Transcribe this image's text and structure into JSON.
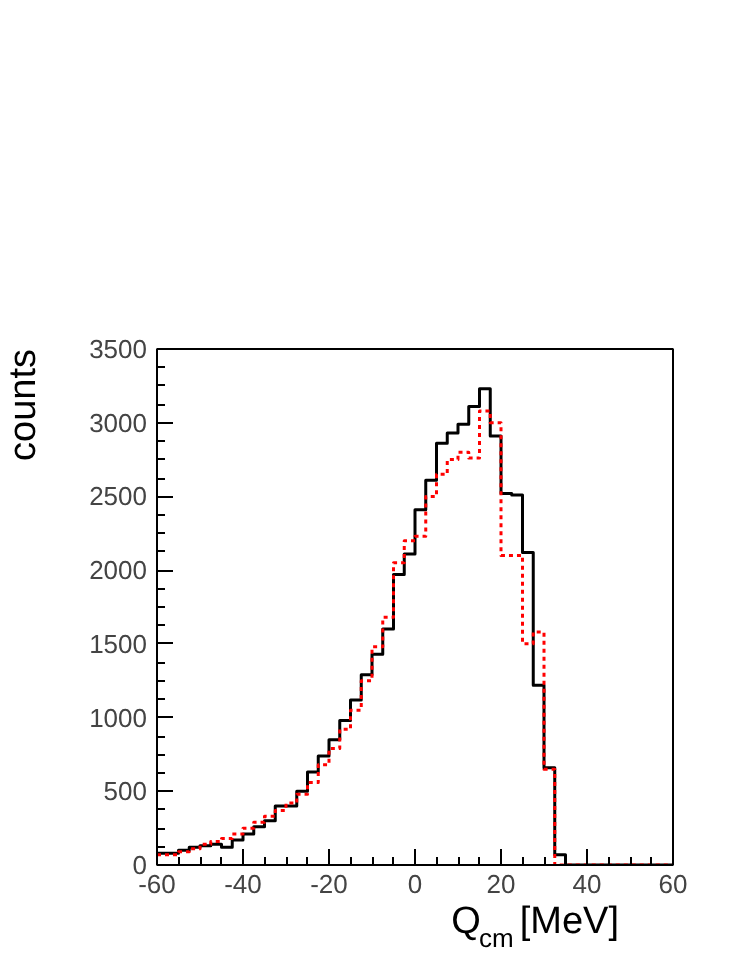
{
  "chart_data": {
    "type": "histogram",
    "xlabel": "Q$_{cm}$ [MeV]",
    "ylabel": "counts",
    "bins": [
      -60,
      -57.5,
      -55,
      -52.5,
      -50,
      -47.5,
      -45,
      -42.5,
      -40,
      -37.5,
      -35,
      -32.5,
      -30,
      -27.5,
      -25,
      -22.5,
      -20,
      -17.5,
      -15,
      -12.5,
      -10,
      -7.5,
      -5,
      -2.5,
      0,
      2.5,
      5,
      7.5,
      10,
      12.5,
      15,
      17.5,
      20,
      22.5,
      25,
      27.5,
      30,
      32.5,
      35,
      37.5,
      40,
      42.5,
      45,
      47.5,
      50,
      52.5,
      55,
      57.5,
      60
    ],
    "series": [
      {
        "color": "#000000",
        "line_style": "solid",
        "values": [
          80,
          80,
          100,
          120,
          130,
          140,
          120,
          170,
          210,
          260,
          300,
          400,
          400,
          500,
          630,
          740,
          850,
          980,
          1120,
          1290,
          1430,
          1600,
          1970,
          2110,
          2410,
          2610,
          2860,
          2930,
          2990,
          3110,
          3230,
          2910,
          2520,
          2510,
          2120,
          1220,
          660,
          70,
          0,
          0,
          0,
          0,
          0,
          0,
          0,
          0,
          0,
          0
        ]
      },
      {
        "color": "#ff0000",
        "line_style": "dotted",
        "values": [
          70,
          70,
          90,
          110,
          140,
          160,
          180,
          210,
          250,
          290,
          330,
          370,
          420,
          480,
          560,
          680,
          790,
          920,
          1050,
          1250,
          1480,
          1680,
          2050,
          2200,
          2230,
          2500,
          2650,
          2750,
          2800,
          2760,
          3080,
          3000,
          2100,
          2100,
          1500,
          1580,
          650,
          0,
          0,
          0,
          0,
          0,
          0,
          0,
          0,
          0,
          0,
          0
        ]
      }
    ],
    "xlim": [
      -60,
      60
    ],
    "xticks": [
      -60,
      -40,
      -20,
      0,
      20,
      40,
      60
    ],
    "ylim": [
      0,
      3500
    ],
    "yticks": [
      0,
      500,
      1000,
      1500,
      2000,
      2500,
      3000,
      3500
    ],
    "grid": false
  }
}
